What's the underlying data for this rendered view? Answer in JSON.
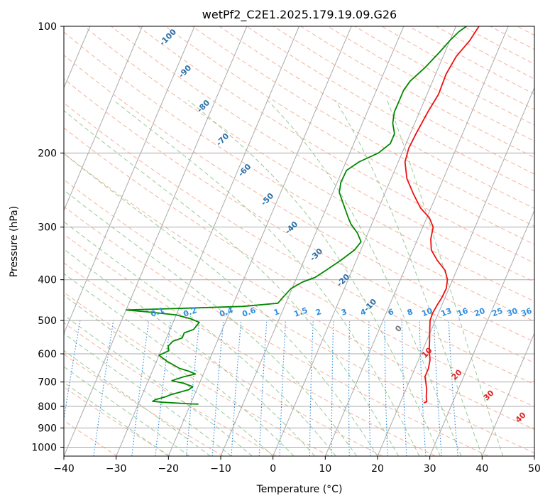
{
  "chart_data": {
    "type": "line",
    "title": "wetPf2_C2E1.2025.179.19.09.G26",
    "xlabel": "Temperature (°C)",
    "ylabel": "Pressure (hPa)",
    "xlim": [
      -40,
      50
    ],
    "ylim": [
      1050,
      100
    ],
    "yscale": "log",
    "x_ticks": [
      -40,
      -30,
      -20,
      -10,
      0,
      10,
      20,
      30,
      40,
      50
    ],
    "y_ticks": [
      100,
      200,
      300,
      400,
      500,
      600,
      700,
      800,
      900,
      1000
    ],
    "grid": true,
    "series": [
      {
        "color": "#ee1111",
        "points": [
          [
            24.5,
            785
          ],
          [
            25.0,
            780
          ],
          [
            24.5,
            760
          ],
          [
            24.0,
            730
          ],
          [
            23.2,
            700
          ],
          [
            22.6,
            680
          ],
          [
            22.6,
            650
          ],
          [
            22.2,
            620
          ],
          [
            21.3,
            590
          ],
          [
            20.6,
            560
          ],
          [
            19.8,
            530
          ],
          [
            19.0,
            500
          ],
          [
            18.9,
            480
          ],
          [
            19.1,
            460
          ],
          [
            19.4,
            440
          ],
          [
            19.5,
            420
          ],
          [
            19.0,
            400
          ],
          [
            17.8,
            380
          ],
          [
            15.5,
            360
          ],
          [
            13.5,
            340
          ],
          [
            12.5,
            320
          ],
          [
            12.0,
            300
          ],
          [
            10.5,
            285
          ],
          [
            8.0,
            270
          ],
          [
            5.5,
            250
          ],
          [
            3.0,
            230
          ],
          [
            1.3,
            210
          ],
          [
            0.9,
            195
          ],
          [
            1.1,
            180
          ],
          [
            1.6,
            160
          ],
          [
            2.2,
            145
          ],
          [
            2.0,
            130
          ],
          [
            2.5,
            118
          ],
          [
            3.8,
            108
          ],
          [
            4.4,
            100
          ]
        ]
      },
      {
        "color": "#008800",
        "points": [
          [
            -18.5,
            790
          ],
          [
            -20.0,
            789
          ],
          [
            -25.5,
            782
          ],
          [
            -27.5,
            778
          ],
          [
            -27.0,
            770
          ],
          [
            -25.5,
            760
          ],
          [
            -24.5,
            750
          ],
          [
            -21.5,
            730
          ],
          [
            -21.0,
            718
          ],
          [
            -23.0,
            705
          ],
          [
            -25.5,
            695
          ],
          [
            -23.5,
            680
          ],
          [
            -21.5,
            670
          ],
          [
            -23.0,
            660
          ],
          [
            -25.0,
            650
          ],
          [
            -28.0,
            625
          ],
          [
            -30.0,
            605
          ],
          [
            -28.5,
            590
          ],
          [
            -29.0,
            575
          ],
          [
            -28.5,
            560
          ],
          [
            -27.0,
            550
          ],
          [
            -27.0,
            535
          ],
          [
            -25.5,
            525
          ],
          [
            -25.0,
            505
          ],
          [
            -27.0,
            495
          ],
          [
            -30.0,
            485
          ],
          [
            -35.0,
            478
          ],
          [
            -40.0,
            472
          ],
          [
            -30.0,
            468
          ],
          [
            -18.0,
            463
          ],
          [
            -11.5,
            455
          ],
          [
            -11.0,
            440
          ],
          [
            -10.2,
            420
          ],
          [
            -8.5,
            405
          ],
          [
            -6.5,
            395
          ],
          [
            -5.0,
            380
          ],
          [
            -3.0,
            360
          ],
          [
            -1.2,
            340
          ],
          [
            -0.6,
            325
          ],
          [
            -2.0,
            310
          ],
          [
            -4.0,
            295
          ],
          [
            -5.0,
            285
          ],
          [
            -7.0,
            265
          ],
          [
            -8.8,
            248
          ],
          [
            -9.3,
            235
          ],
          [
            -9.2,
            220
          ],
          [
            -7.5,
            210
          ],
          [
            -4.5,
            200
          ],
          [
            -3.0,
            190
          ],
          [
            -3.0,
            180
          ],
          [
            -4.2,
            170
          ],
          [
            -4.8,
            160
          ],
          [
            -4.8,
            150
          ],
          [
            -4.8,
            142
          ],
          [
            -4.3,
            135
          ],
          [
            -2.5,
            125
          ],
          [
            -1.0,
            115
          ],
          [
            0.0,
            108
          ],
          [
            1.0,
            103
          ],
          [
            2.0,
            100
          ]
        ]
      }
    ],
    "dry_adiabat_labels": [
      "-100",
      "-90",
      "-80",
      "-70",
      "-60",
      "-50",
      "-40",
      "-30",
      "-20",
      "-10"
    ],
    "moist_adiabat_labels": [
      "0",
      "10",
      "20",
      "30",
      "40"
    ],
    "mixing_ratio_labels": [
      "0.1",
      "0.2",
      "0.4",
      "0.6",
      "1",
      "1.5",
      "2",
      "3",
      "4",
      "6",
      "8",
      "10",
      "13",
      "16",
      "20",
      "25",
      "30",
      "36"
    ],
    "colors": {
      "temperature": "#ee1111",
      "dewpoint": "#008800",
      "isotherm": "#aaaaaa",
      "dry_adiabat": "#f4a58a",
      "moist_adiabat": "#8cc48c",
      "mixing_ratio": "#2f8fe0",
      "dry_label": "#2a6fa8",
      "moist_label": "#dd2222",
      "mixing_label": "#2f8fe0"
    }
  }
}
